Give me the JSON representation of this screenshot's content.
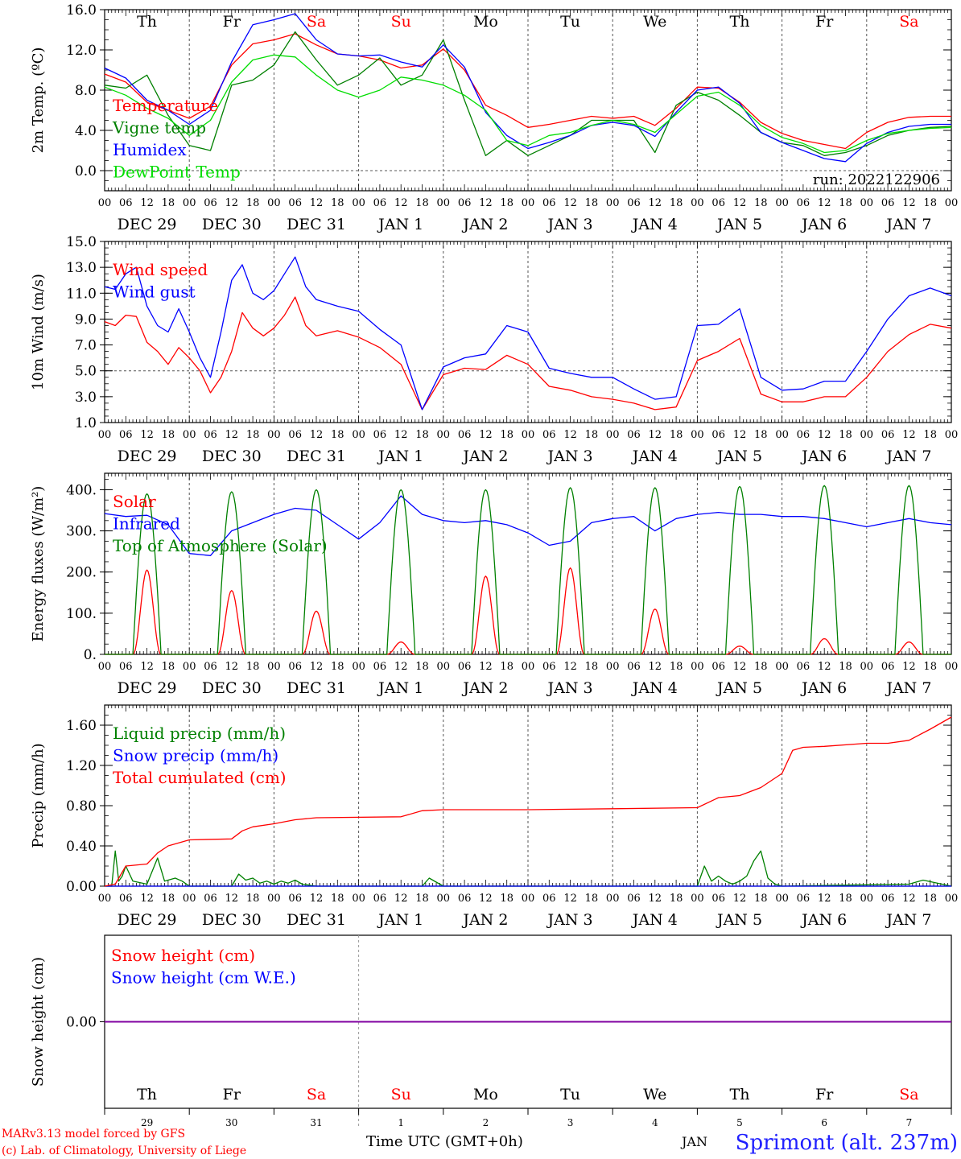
{
  "run_label": "run: 2022122906",
  "footer": {
    "credit_line1": "MARv3.13 model forced by GFS",
    "credit_line2": "(c) Lab. of Climatology, University of Liege",
    "xlabel": "Time UTC (GMT+0h)",
    "month_label": "JAN",
    "station": "Sprimont (alt. 237m)"
  },
  "colors": {
    "red": "#ff0000",
    "green": "#008000",
    "blue": "#0000ff",
    "lightgreen": "#00dd00",
    "snowline": "#8000a0",
    "axis": "#000000",
    "grid": "#555555"
  },
  "time_axis": {
    "hour_ticks": [
      "00",
      "06",
      "12",
      "18"
    ],
    "date_labels": [
      "DEC 29",
      "DEC 30",
      "DEC 31",
      "JAN  1",
      "JAN  2",
      "JAN  3",
      "JAN  4",
      "JAN  5",
      "JAN  6",
      "JAN  7"
    ],
    "weekdays": [
      "Th",
      "Fr",
      "Sa",
      "Su",
      "Mo",
      "Tu",
      "We",
      "Th",
      "Fr",
      "Sa"
    ],
    "weekday_colors": [
      "black",
      "black",
      "red",
      "red",
      "black",
      "black",
      "black",
      "black",
      "black",
      "red"
    ],
    "day_numbers": [
      "29",
      "30",
      "31",
      "1",
      "2",
      "3",
      "4",
      "5",
      "6",
      "7"
    ],
    "xlim_hours": [
      0,
      240
    ]
  },
  "chart_data": [
    {
      "type": "line",
      "id": "temp",
      "ylabel": "2m Temp. (ºC)",
      "ylim": [
        -2,
        16
      ],
      "yticks": [
        0,
        4,
        8,
        12,
        16
      ],
      "ytick_labels": [
        "0.0",
        "4.0",
        "8.0",
        "12.0",
        "16.0"
      ],
      "grid": "day verticals dashed, y=0 dashed",
      "legend_placement": "left",
      "series": [
        {
          "name": "Temperature",
          "color": "red",
          "x": [
            0,
            6,
            12,
            18,
            24,
            30,
            36,
            42,
            48,
            54,
            60,
            66,
            72,
            78,
            84,
            90,
            96,
            102,
            108,
            114,
            120,
            126,
            132,
            138,
            144,
            150,
            156,
            162,
            168,
            174,
            180,
            186,
            192,
            198,
            204,
            210,
            216,
            222,
            228,
            234,
            240
          ],
          "y": [
            9.6,
            8.8,
            6.8,
            6,
            5.2,
            6.4,
            10.5,
            12.6,
            13,
            13.6,
            12.5,
            11.6,
            11.4,
            11,
            10.2,
            10.5,
            12.1,
            10,
            6.5,
            5.5,
            4.3,
            4.6,
            5,
            5.4,
            5.2,
            5.4,
            4.5,
            6.2,
            8.3,
            8.2,
            6.8,
            4.8,
            3.7,
            3,
            2.6,
            2.2,
            3.8,
            4.8,
            5.3,
            5.4,
            5.4
          ]
        },
        {
          "name": "Vigne temp",
          "color": "green",
          "x": [
            0,
            6,
            12,
            18,
            24,
            30,
            36,
            42,
            48,
            54,
            60,
            66,
            72,
            78,
            84,
            90,
            96,
            102,
            108,
            114,
            120,
            126,
            132,
            138,
            144,
            150,
            156,
            162,
            168,
            174,
            180,
            186,
            192,
            198,
            204,
            210,
            216,
            222,
            228,
            234,
            240
          ],
          "y": [
            8.5,
            8.2,
            9.5,
            5.5,
            2.5,
            2,
            8.5,
            9,
            10.5,
            13.8,
            11,
            8.5,
            9.5,
            11.2,
            8.5,
            9.5,
            13,
            7,
            1.5,
            3,
            1.5,
            2.5,
            3.5,
            5,
            5,
            5,
            1.8,
            6.5,
            7.8,
            7,
            5.5,
            3.8,
            2.8,
            2.5,
            1.5,
            1.8,
            2.5,
            3.5,
            4,
            4.3,
            4.4
          ]
        },
        {
          "name": "Humidex",
          "color": "blue",
          "x": [
            0,
            6,
            12,
            18,
            24,
            30,
            36,
            42,
            48,
            54,
            60,
            66,
            72,
            78,
            84,
            90,
            96,
            102,
            108,
            114,
            120,
            126,
            132,
            138,
            144,
            150,
            156,
            162,
            168,
            174,
            180,
            186,
            192,
            198,
            204,
            210,
            216,
            222,
            228,
            234,
            240
          ],
          "y": [
            10.2,
            9.2,
            7,
            6,
            4.6,
            6,
            10.8,
            14.5,
            15,
            15.6,
            13,
            11.6,
            11.4,
            11.5,
            10.8,
            10.3,
            12.5,
            10.3,
            5.8,
            3.5,
            2.2,
            2.8,
            3.5,
            4.5,
            4.8,
            4.5,
            3.4,
            5.8,
            8,
            8.3,
            6.7,
            3.8,
            2.8,
            2,
            1.2,
            0.9,
            2.7,
            3.8,
            4.4,
            4.6,
            4.6
          ]
        },
        {
          "name": "DewPoint Temp",
          "color": "lightgreen",
          "x": [
            0,
            6,
            12,
            18,
            24,
            30,
            36,
            42,
            48,
            54,
            60,
            66,
            72,
            78,
            84,
            90,
            96,
            102,
            108,
            114,
            120,
            126,
            132,
            138,
            144,
            150,
            156,
            162,
            168,
            174,
            180,
            186,
            192,
            198,
            204,
            210,
            216,
            222,
            228,
            234,
            240
          ],
          "y": [
            8.3,
            7.5,
            6.2,
            5.2,
            3.5,
            5,
            8.8,
            11,
            11.5,
            11.3,
            9.5,
            8,
            7.3,
            8,
            9.3,
            9,
            8.5,
            7.5,
            6,
            3,
            2.5,
            3.5,
            3.8,
            4.5,
            5,
            4.6,
            3.8,
            5.6,
            7.4,
            7.8,
            6.5,
            4.5,
            3.3,
            2.7,
            1.8,
            2,
            3,
            3.7,
            4,
            4.2,
            4.3
          ]
        }
      ]
    },
    {
      "type": "line",
      "id": "wind",
      "ylabel": "10m Wind (m/s)",
      "ylim": [
        1,
        15
      ],
      "yticks": [
        1,
        3,
        5,
        7,
        9,
        11,
        13,
        15
      ],
      "ytick_labels": [
        "1.0",
        "3.0",
        "5.0",
        "7.0",
        "9.0",
        "11.0",
        "13.0",
        "15.0"
      ],
      "grid": "day verticals dashed, y=5 dashed",
      "legend_placement": "left",
      "series": [
        {
          "name": "Wind speed",
          "color": "red",
          "x": [
            0,
            3,
            6,
            9,
            12,
            15,
            18,
            21,
            24,
            27,
            30,
            33,
            36,
            39,
            42,
            45,
            48,
            51,
            54,
            57,
            60,
            66,
            72,
            78,
            84,
            90,
            96,
            102,
            108,
            114,
            120,
            126,
            132,
            138,
            144,
            150,
            156,
            162,
            168,
            174,
            180,
            186,
            192,
            198,
            204,
            210,
            216,
            222,
            228,
            234,
            240
          ],
          "y": [
            8.8,
            8.5,
            9.3,
            9.2,
            7.2,
            6.5,
            5.5,
            6.8,
            6,
            5,
            3.3,
            4.5,
            6.5,
            9.5,
            8.3,
            7.7,
            8.3,
            9.3,
            10.7,
            8.5,
            7.7,
            8.1,
            7.6,
            6.8,
            5.5,
            2,
            4.7,
            5.2,
            5.1,
            6.2,
            5.5,
            3.8,
            3.5,
            3,
            2.8,
            2.5,
            2,
            2.2,
            5.8,
            6.5,
            7.5,
            3.2,
            2.6,
            2.6,
            3,
            3,
            4.5,
            6.5,
            7.8,
            8.6,
            8.3
          ]
        },
        {
          "name": "Wind gust",
          "color": "blue",
          "x": [
            0,
            3,
            6,
            9,
            12,
            15,
            18,
            21,
            24,
            27,
            30,
            33,
            36,
            39,
            42,
            45,
            48,
            51,
            54,
            57,
            60,
            66,
            72,
            78,
            84,
            90,
            96,
            102,
            108,
            114,
            120,
            126,
            132,
            138,
            144,
            150,
            156,
            162,
            168,
            174,
            180,
            186,
            192,
            198,
            204,
            210,
            216,
            222,
            228,
            234,
            240
          ],
          "y": [
            11.5,
            11.3,
            12.5,
            13,
            10,
            8.5,
            8,
            9.8,
            8,
            6,
            4.5,
            8,
            12,
            13.2,
            11,
            10.5,
            11.2,
            12.5,
            13.8,
            11.5,
            10.5,
            10,
            9.6,
            8.2,
            7,
            2,
            5.3,
            6,
            6.3,
            8.5,
            8,
            5.2,
            4.8,
            4.5,
            4.5,
            3.6,
            2.8,
            3,
            8.5,
            8.6,
            9.8,
            4.5,
            3.5,
            3.6,
            4.2,
            4.2,
            6.5,
            9,
            10.8,
            11.4,
            10.8
          ]
        }
      ]
    },
    {
      "type": "line",
      "id": "energy",
      "ylabel": "Energy fluxes (W/m²)",
      "ylim": [
        0,
        440
      ],
      "yticks": [
        0,
        100,
        200,
        300,
        400
      ],
      "ytick_labels": [
        "0.",
        "100.",
        "200.",
        "300.",
        "400."
      ],
      "grid": "day verticals dashed",
      "legend_placement": "left",
      "daytime_series": {
        "sunrise_h": 8,
        "sunset_h": 16,
        "toa_peak": [
          390,
          395,
          400,
          400,
          400,
          405,
          405,
          408,
          410,
          410
        ],
        "solar_peak": [
          205,
          155,
          105,
          30,
          190,
          210,
          110,
          20,
          38,
          30
        ]
      },
      "series": [
        {
          "name": "Solar",
          "color": "red",
          "kind": "daily-bell"
        },
        {
          "name": "Infrared",
          "color": "blue",
          "x": [
            0,
            6,
            12,
            18,
            24,
            30,
            36,
            42,
            48,
            54,
            60,
            66,
            72,
            78,
            84,
            90,
            96,
            102,
            108,
            114,
            120,
            126,
            132,
            138,
            144,
            150,
            156,
            162,
            168,
            174,
            180,
            186,
            192,
            198,
            204,
            210,
            216,
            222,
            228,
            234,
            240
          ],
          "y": [
            342,
            335,
            338,
            315,
            245,
            240,
            300,
            320,
            340,
            355,
            350,
            315,
            280,
            320,
            385,
            340,
            325,
            320,
            325,
            315,
            295,
            265,
            275,
            320,
            330,
            335,
            300,
            330,
            340,
            345,
            340,
            340,
            335,
            335,
            330,
            320,
            310,
            320,
            330,
            320,
            315
          ]
        },
        {
          "name": "Top of Atmosphere (Solar)",
          "color": "green",
          "kind": "daily-bell"
        }
      ]
    },
    {
      "type": "line",
      "id": "precip",
      "ylabel": "Precip (mm/h)",
      "ylim": [
        0,
        1.8
      ],
      "yticks": [
        0,
        0.4,
        0.8,
        1.2,
        1.6
      ],
      "ytick_labels": [
        "0.00",
        "0.40",
        "0.80",
        "1.20",
        "1.60"
      ],
      "grid": "day verticals dashed",
      "legend_placement": "left",
      "series": [
        {
          "name": "Liquid precip (mm/h)",
          "color": "green",
          "x": [
            0,
            2,
            3,
            4,
            5,
            6,
            8,
            12,
            15,
            17,
            20,
            22,
            24,
            36,
            38,
            40,
            42,
            44,
            46,
            48,
            50,
            52,
            54,
            56,
            58,
            60,
            90,
            92,
            94,
            96,
            168,
            170,
            172,
            174,
            176,
            178,
            180,
            182,
            184,
            186,
            188,
            190,
            192,
            228,
            232,
            236,
            240
          ],
          "y": [
            0,
            0,
            0.35,
            0.05,
            0.1,
            0.2,
            0.05,
            0.02,
            0.28,
            0.05,
            0.08,
            0.05,
            0,
            0,
            0.12,
            0.06,
            0.08,
            0.03,
            0.05,
            0.02,
            0.05,
            0.03,
            0.06,
            0.02,
            0.01,
            0,
            0,
            0.08,
            0.04,
            0,
            0,
            0.2,
            0.05,
            0.1,
            0.05,
            0.02,
            0.05,
            0.1,
            0.25,
            0.35,
            0.08,
            0.02,
            0,
            0.02,
            0.06,
            0.03,
            0
          ]
        },
        {
          "name": "Snow precip (mm/h)",
          "color": "blue",
          "x": [
            0,
            240
          ],
          "y": [
            0,
            0
          ]
        },
        {
          "name": "Total cumulated (cm)",
          "color": "red",
          "x": [
            0,
            3,
            6,
            12,
            15,
            18,
            24,
            36,
            39,
            42,
            48,
            54,
            60,
            84,
            90,
            96,
            120,
            144,
            168,
            174,
            180,
            186,
            192,
            195,
            198,
            204,
            216,
            222,
            228,
            234,
            240
          ],
          "y": [
            0,
            0.02,
            0.2,
            0.22,
            0.33,
            0.4,
            0.46,
            0.47,
            0.55,
            0.59,
            0.62,
            0.66,
            0.68,
            0.69,
            0.75,
            0.76,
            0.76,
            0.77,
            0.78,
            0.88,
            0.9,
            0.98,
            1.12,
            1.35,
            1.38,
            1.39,
            1.42,
            1.42,
            1.45,
            1.56,
            1.68
          ]
        }
      ]
    },
    {
      "type": "line",
      "id": "snow",
      "ylabel": "Snow height (cm)",
      "ylim": [
        -1,
        1
      ],
      "yticks": [
        0
      ],
      "ytick_labels": [
        "0.00"
      ],
      "legend_placement": "left",
      "series": [
        {
          "name": "Snow height (cm)",
          "color": "red",
          "x": [
            0,
            240
          ],
          "y": [
            0,
            0
          ]
        },
        {
          "name": "Snow height (cm W.E.)",
          "color": "blue",
          "x": [
            0,
            240
          ],
          "y": [
            0,
            0
          ]
        }
      ]
    }
  ]
}
